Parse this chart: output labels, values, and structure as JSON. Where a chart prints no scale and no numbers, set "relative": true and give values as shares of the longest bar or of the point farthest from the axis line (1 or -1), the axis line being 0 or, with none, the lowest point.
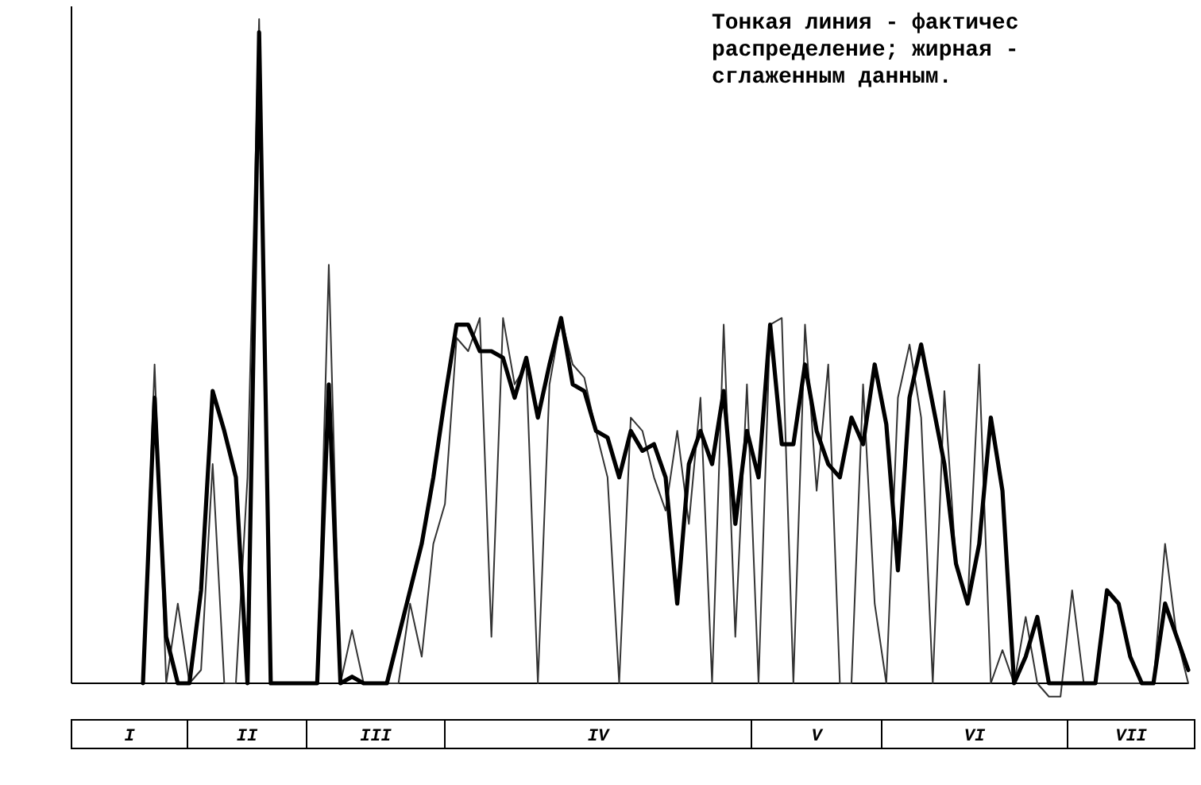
{
  "chart_data": {
    "type": "line",
    "relative": true,
    "categories": [
      null,
      null,
      null,
      null,
      null,
      null,
      null,
      null,
      null,
      null,
      null,
      null,
      null,
      null,
      null,
      null,
      null,
      null,
      null,
      null,
      null,
      null,
      null,
      null,
      null,
      null,
      null,
      null,
      null,
      null,
      null,
      null,
      null,
      null,
      null,
      null,
      null,
      null,
      null,
      null,
      null,
      null,
      null,
      null,
      null,
      null,
      null,
      null,
      null,
      null,
      null,
      null,
      null,
      null,
      null,
      null,
      null,
      null,
      null,
      null,
      null,
      null,
      null,
      null,
      null,
      null,
      null,
      null,
      null,
      null,
      null,
      null,
      null,
      null,
      null,
      null,
      null,
      null,
      null,
      null,
      null,
      null,
      null,
      null,
      null,
      null,
      null,
      null,
      null,
      null,
      null
    ],
    "series": [
      {
        "color": "#333333",
        "values": [
          0,
          0.48,
          0,
          0.12,
          0,
          0.02,
          0.33,
          0,
          0,
          0.31,
          1,
          0,
          0,
          0,
          0,
          0,
          0.63,
          0,
          0.08,
          0,
          0,
          0,
          0,
          0.12,
          0.04,
          0.21,
          0.27,
          0.52,
          0.5,
          0.55,
          0.07,
          0.55,
          0.45,
          0.48,
          0,
          0.45,
          0.55,
          0.48,
          0.46,
          0.38,
          0.31,
          0,
          0.4,
          0.38,
          0.31,
          0.26,
          0.38,
          0.24,
          0.43,
          0,
          0.54,
          0.07,
          0.45,
          0,
          0.54,
          0.55,
          0,
          0.54,
          0.29,
          0.48,
          0,
          0,
          0.45,
          0.12,
          0,
          0.43,
          0.51,
          0.4,
          0,
          0.44,
          0.18,
          0.12,
          0.48,
          0,
          0.05,
          0,
          0.1,
          0,
          -0.02,
          -0.02,
          0.14,
          0,
          0,
          0,
          0,
          0,
          0,
          0,
          0.21,
          0.07,
          0
        ]
      },
      {
        "color": "#000000",
        "values": [
          0,
          0.43,
          0.07,
          0,
          0,
          0.14,
          0.44,
          0.38,
          0.31,
          0,
          0.98,
          0,
          0,
          0,
          0,
          0,
          0.45,
          0,
          0.01,
          0,
          0,
          0,
          0.07,
          0.14,
          0.21,
          0.31,
          0.43,
          0.54,
          0.54,
          0.5,
          0.5,
          0.49,
          0.43,
          0.49,
          0.4,
          0.48,
          0.55,
          0.45,
          0.44,
          0.38,
          0.37,
          0.31,
          0.38,
          0.35,
          0.36,
          0.31,
          0.12,
          0.33,
          0.38,
          0.33,
          0.44,
          0.24,
          0.38,
          0.31,
          0.54,
          0.36,
          0.36,
          0.48,
          0.38,
          0.33,
          0.31,
          0.4,
          0.36,
          0.48,
          0.39,
          0.17,
          0.43,
          0.51,
          0.42,
          0.33,
          0.18,
          0.12,
          0.21,
          0.4,
          0.29,
          0,
          0.04,
          0.1,
          0,
          0,
          0,
          0,
          0,
          0.14,
          0.12,
          0.04,
          0,
          0,
          0.12,
          0.07,
          0.02
        ]
      }
    ],
    "annotations": [
      "Тонкая линия - фактичес",
      "распределение; жирная -",
      "сглаженным данным.",
      "I",
      "II",
      "III",
      "IV",
      "V",
      "VI",
      "VII"
    ]
  }
}
